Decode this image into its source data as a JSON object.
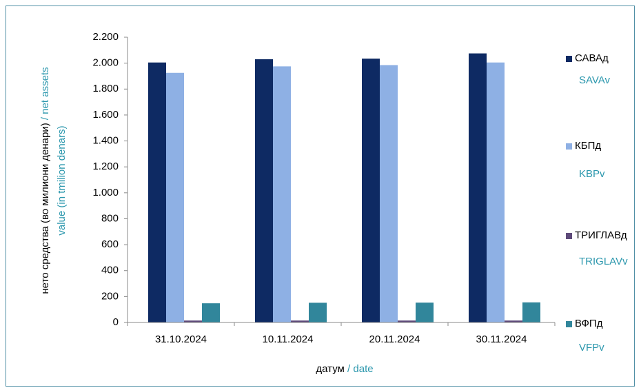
{
  "chart_data": {
    "type": "bar",
    "ylabel": "нето средства (во милиони денари)",
    "ylabel_en": [
      "/ net assets",
      "value  (in tmilion  denars)"
    ],
    "xlabel": "датум",
    "xlabel_en": "/ date",
    "categories": [
      "31.10.2024",
      "10.11.2024",
      "20.11.2024",
      "30.11.2024"
    ],
    "series": [
      {
        "name": "САВАд",
        "name_en": "SAVAv",
        "color": "#0e2a63",
        "values": [
          2005,
          2030,
          2035,
          2075
        ]
      },
      {
        "name": "КБПд",
        "name_en": "KBPv",
        "color": "#8eb0e4",
        "values": [
          1925,
          1975,
          1985,
          2005
        ]
      },
      {
        "name": "ТРИГЛАВд",
        "name_en": "TRIGLAVv",
        "color": "#5e4a7a",
        "values": [
          15,
          15,
          15,
          15
        ]
      },
      {
        "name": "ВФПд",
        "name_en": "VFPv",
        "color": "#31869b",
        "values": [
          148,
          152,
          153,
          155
        ]
      }
    ],
    "ylim": [
      0,
      2200
    ],
    "yticks": [
      0,
      200,
      400,
      600,
      800,
      {
        "value": 1000,
        "label": "1.000"
      },
      {
        "value": 1200,
        "label": "1.200"
      },
      {
        "value": 1400,
        "label": "1.400"
      },
      {
        "value": 1600,
        "label": "1.600"
      },
      {
        "value": 1800,
        "label": "1.800"
      },
      {
        "value": 2000,
        "label": "2.000"
      },
      {
        "value": 2200,
        "label": "2.200"
      }
    ],
    "grid": false
  }
}
